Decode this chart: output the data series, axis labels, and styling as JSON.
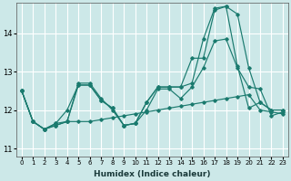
{
  "xlabel": "Humidex (Indice chaleur)",
  "bg_color": "#cce8e8",
  "grid_color": "#ffffff",
  "line_color": "#1a7a6e",
  "xlim": [
    -0.5,
    23.5
  ],
  "ylim": [
    10.8,
    14.8
  ],
  "yticks": [
    11,
    12,
    13,
    14
  ],
  "xticks": [
    0,
    1,
    2,
    3,
    4,
    5,
    6,
    7,
    8,
    9,
    10,
    11,
    12,
    13,
    14,
    15,
    16,
    17,
    18,
    19,
    20,
    21,
    22,
    23
  ],
  "series": [
    [
      12.5,
      11.7,
      11.5,
      11.6,
      11.7,
      11.7,
      11.7,
      11.75,
      11.8,
      11.85,
      11.9,
      11.95,
      12.0,
      12.05,
      12.1,
      12.15,
      12.2,
      12.25,
      12.3,
      12.35,
      12.4,
      12.0,
      11.95,
      11.9
    ],
    [
      12.5,
      11.7,
      11.5,
      11.6,
      11.7,
      12.7,
      12.7,
      12.3,
      12.0,
      11.6,
      11.65,
      12.0,
      12.55,
      12.55,
      12.3,
      12.6,
      13.1,
      13.8,
      13.85,
      13.1,
      12.6,
      12.55,
      11.85,
      11.95
    ],
    [
      12.5,
      11.7,
      11.5,
      11.65,
      12.0,
      12.65,
      12.65,
      12.25,
      12.05,
      11.6,
      11.65,
      12.2,
      12.6,
      12.6,
      12.6,
      13.35,
      13.35,
      14.6,
      14.7,
      14.5,
      13.1,
      12.2,
      12.0,
      12.0
    ],
    [
      12.5,
      11.7,
      11.5,
      11.65,
      11.7,
      12.65,
      12.65,
      12.25,
      12.05,
      11.6,
      11.65,
      12.2,
      12.6,
      12.6,
      12.6,
      12.7,
      13.85,
      14.65,
      14.7,
      13.15,
      12.05,
      12.2,
      12.0,
      12.0
    ]
  ]
}
